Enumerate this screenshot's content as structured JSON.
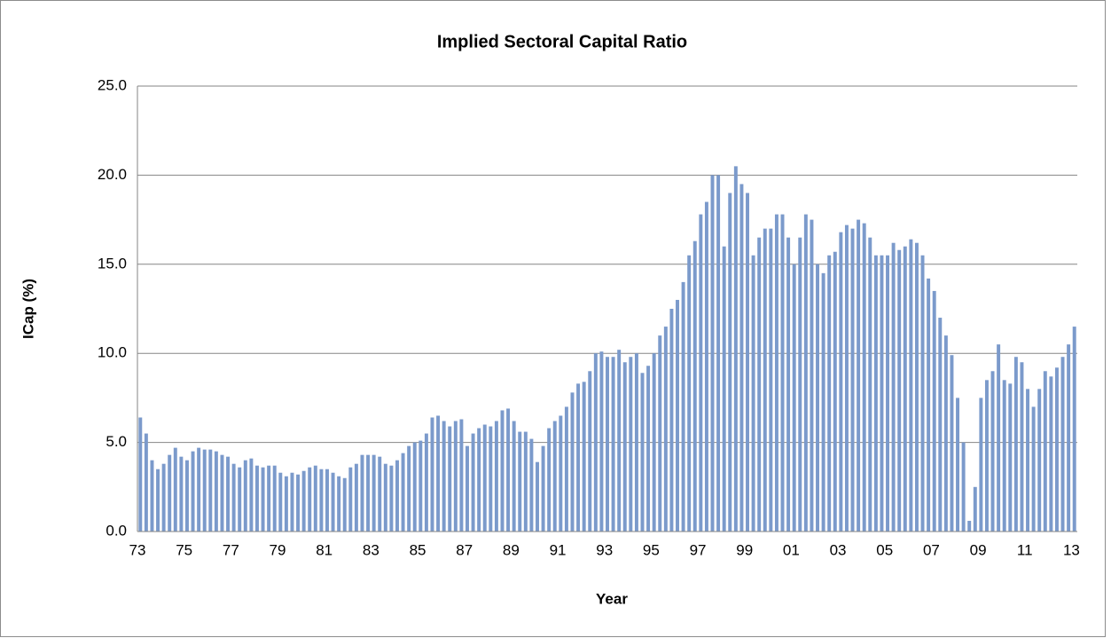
{
  "chart_data": {
    "type": "bar",
    "title": "Implied Sectoral Capital Ratio",
    "x_label": "Year",
    "y_label": "ICap (%)",
    "categories": [
      "73",
      null,
      null,
      null,
      null,
      null,
      null,
      null,
      "75",
      null,
      null,
      null,
      null,
      null,
      null,
      null,
      "77",
      null,
      null,
      null,
      null,
      null,
      null,
      null,
      "79",
      null,
      null,
      null,
      null,
      null,
      null,
      null,
      "81",
      null,
      null,
      null,
      null,
      null,
      null,
      null,
      "83",
      null,
      null,
      null,
      null,
      null,
      null,
      null,
      "85",
      null,
      null,
      null,
      null,
      null,
      null,
      null,
      "87",
      null,
      null,
      null,
      null,
      null,
      null,
      null,
      "89",
      null,
      null,
      null,
      null,
      null,
      null,
      null,
      "91",
      null,
      null,
      null,
      null,
      null,
      null,
      null,
      "93",
      null,
      null,
      null,
      null,
      null,
      null,
      null,
      "95",
      null,
      null,
      null,
      null,
      null,
      null,
      null,
      "97",
      null,
      null,
      null,
      null,
      null,
      null,
      null,
      "99",
      null,
      null,
      null,
      null,
      null,
      null,
      null,
      "01",
      null,
      null,
      null,
      null,
      null,
      null,
      null,
      "03",
      null,
      null,
      null,
      null,
      null,
      null,
      null,
      "05",
      null,
      null,
      null,
      null,
      null,
      null,
      null,
      "07",
      null,
      null,
      null,
      null,
      null,
      null,
      null,
      "09",
      null,
      null,
      null,
      null,
      null,
      null,
      null,
      "11",
      null,
      null,
      null,
      null,
      null,
      null,
      null,
      "13"
    ],
    "values": [
      6.4,
      5.5,
      4.0,
      3.5,
      3.8,
      4.3,
      4.7,
      4.2,
      4.0,
      4.5,
      4.7,
      4.6,
      4.6,
      4.5,
      4.3,
      4.2,
      3.8,
      3.6,
      4.0,
      4.1,
      3.7,
      3.6,
      3.7,
      3.7,
      3.3,
      3.1,
      3.3,
      3.2,
      3.4,
      3.6,
      3.7,
      3.5,
      3.5,
      3.3,
      3.1,
      3.0,
      3.6,
      3.8,
      4.3,
      4.3,
      4.3,
      4.2,
      3.8,
      3.7,
      4.0,
      4.4,
      4.8,
      5.0,
      5.1,
      5.5,
      6.4,
      6.5,
      6.2,
      5.9,
      6.2,
      6.3,
      4.8,
      5.5,
      5.8,
      6.0,
      5.9,
      6.2,
      6.8,
      6.9,
      6.2,
      5.6,
      5.6,
      5.2,
      3.9,
      4.8,
      5.8,
      6.2,
      6.5,
      7.0,
      7.8,
      8.3,
      8.4,
      9.0,
      10.0,
      10.1,
      9.8,
      9.8,
      10.2,
      9.5,
      9.8,
      10.0,
      8.9,
      9.3,
      10.0,
      11.0,
      11.5,
      12.5,
      13.0,
      14.0,
      15.5,
      16.3,
      17.8,
      18.5,
      20.0,
      20.0,
      16.0,
      19.0,
      20.5,
      19.5,
      19.0,
      15.5,
      16.5,
      17.0,
      17.0,
      17.8,
      17.8,
      16.5,
      15.0,
      16.5,
      17.8,
      17.5,
      15.0,
      14.5,
      15.5,
      15.7,
      16.8,
      17.2,
      17.0,
      17.5,
      17.3,
      16.5,
      15.5,
      15.5,
      15.5,
      16.2,
      15.8,
      16.0,
      16.4,
      16.2,
      15.5,
      14.2,
      13.5,
      12.0,
      11.0,
      9.9,
      7.5,
      5.0,
      0.6,
      2.5,
      7.5,
      8.5,
      9.0,
      10.5,
      8.5,
      8.3,
      9.8,
      9.5,
      8.0,
      7.0,
      8.0,
      9.0,
      8.7,
      9.2,
      9.8,
      10.5,
      11.5
    ],
    "color": "#7b9acb",
    "ylim": [
      0,
      25
    ],
    "yticks": [
      {
        "value": 0,
        "label": "0.0"
      },
      {
        "value": 5,
        "label": "5.0"
      },
      {
        "value": 10,
        "label": "10.0"
      },
      {
        "value": 15,
        "label": "15.0"
      },
      {
        "value": 20,
        "label": "20.0"
      },
      {
        "value": 25,
        "label": "25.0"
      }
    ],
    "grid": true
  }
}
